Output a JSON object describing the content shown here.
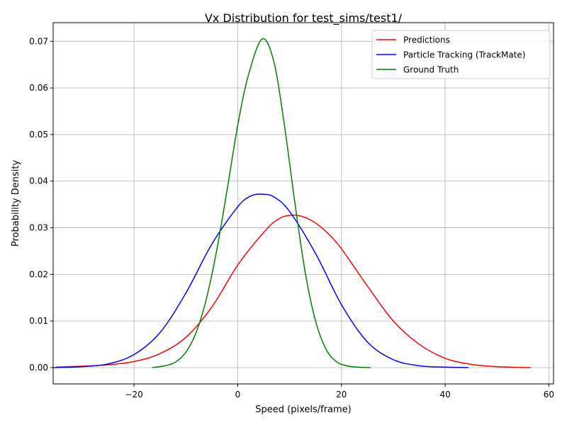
{
  "chart_data": {
    "type": "line",
    "title": "Vx Distribution for test_sims/test1/",
    "xlabel": "Speed (pixels/frame)",
    "ylabel": "Probability Density",
    "xlim": [
      -35.6,
      60.9
    ],
    "ylim": [
      -0.0035,
      0.074
    ],
    "x_ticks": [
      -20,
      0,
      20,
      40,
      60
    ],
    "x_tick_labels": [
      "−20",
      "0",
      "20",
      "40",
      "60"
    ],
    "y_ticks": [
      0.0,
      0.01,
      0.02,
      0.03,
      0.04,
      0.05,
      0.06,
      0.07
    ],
    "y_tick_labels": [
      "0.00",
      "0.01",
      "0.02",
      "0.03",
      "0.04",
      "0.05",
      "0.06",
      "0.07"
    ],
    "grid": true,
    "legend_position": "top-right",
    "series": [
      {
        "name": "Predictions",
        "color": "#ff0000",
        "x": [
          -35.0,
          -30.0,
          -25.0,
          -20.0,
          -15.0,
          -10.0,
          -5.0,
          0.0,
          5.0,
          8.0,
          11.0,
          14.0,
          17.0,
          20.0,
          25.0,
          30.0,
          35.0,
          40.0,
          45.0,
          50.0,
          56.5
        ],
        "y": [
          0.0001,
          0.0003,
          0.0006,
          0.0013,
          0.003,
          0.0065,
          0.013,
          0.022,
          0.029,
          0.032,
          0.0327,
          0.0317,
          0.0292,
          0.0255,
          0.0175,
          0.01,
          0.005,
          0.002,
          0.0007,
          0.0002,
          0.0
        ]
      },
      {
        "name": "Particle Tracking (TrackMate)",
        "color": "#0000ff",
        "x": [
          -35.5,
          -30.0,
          -25.0,
          -20.0,
          -15.0,
          -10.0,
          -5.0,
          0.0,
          2.5,
          4.7,
          7.0,
          10.0,
          15.0,
          20.0,
          25.0,
          30.0,
          35.0,
          40.0,
          44.5
        ],
        "y": [
          0.0,
          0.0002,
          0.0008,
          0.0028,
          0.0075,
          0.016,
          0.0265,
          0.0345,
          0.0368,
          0.0372,
          0.0366,
          0.0335,
          0.0245,
          0.0135,
          0.0055,
          0.0017,
          0.0004,
          0.0001,
          0.0
        ]
      },
      {
        "name": "Ground Truth",
        "color": "#008000",
        "x": [
          -16.5,
          -14.0,
          -12.0,
          -10.0,
          -8.0,
          -6.0,
          -4.0,
          -2.0,
          0.0,
          2.0,
          4.7,
          7.0,
          9.0,
          11.0,
          13.0,
          15.0,
          17.0,
          19.0,
          21.0,
          23.0,
          25.6
        ],
        "y": [
          0.0,
          0.0004,
          0.0012,
          0.0033,
          0.0076,
          0.015,
          0.0255,
          0.0385,
          0.052,
          0.0625,
          0.0705,
          0.0655,
          0.052,
          0.0355,
          0.0205,
          0.01,
          0.004,
          0.0013,
          0.0004,
          0.0001,
          0.0
        ]
      }
    ]
  }
}
